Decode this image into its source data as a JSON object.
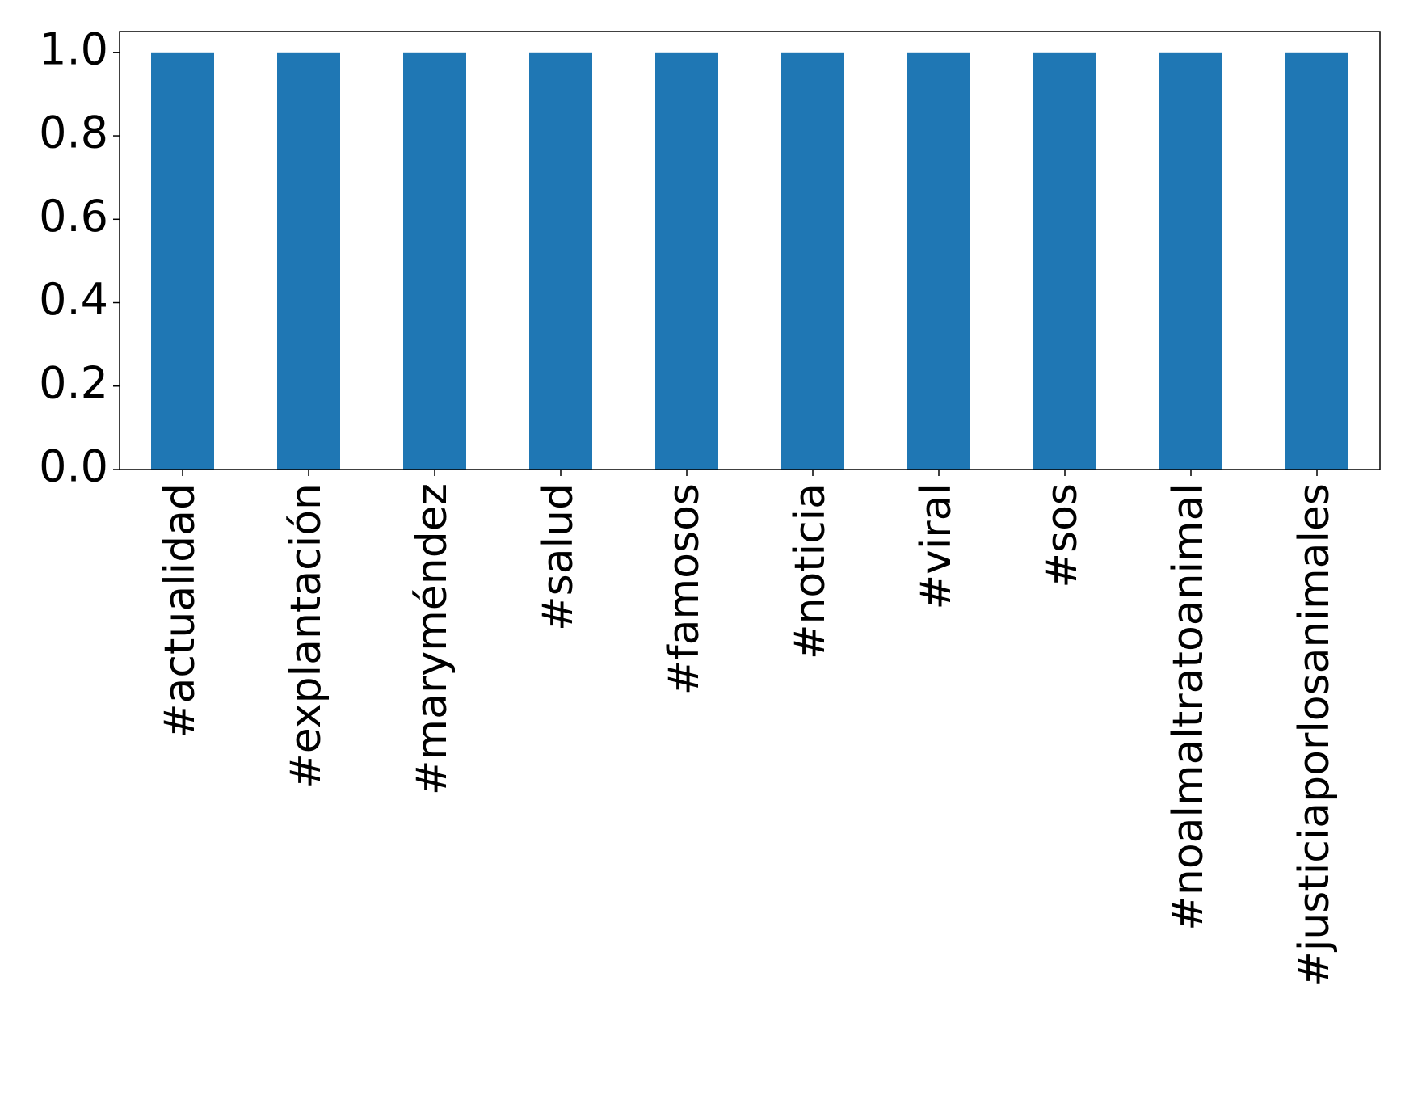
{
  "chart_data": {
    "type": "bar",
    "categories": [
      "#actualidad",
      "#explantación",
      "#maryméndez",
      "#salud",
      "#famosos",
      "#noticia",
      "#viral",
      "#sos",
      "#noalmaltratoanimal",
      "#justiciaporlosanimales"
    ],
    "values": [
      1,
      1,
      1,
      1,
      1,
      1,
      1,
      1,
      1,
      1
    ],
    "color": "#1f77b4",
    "ylim": [
      0,
      1.05
    ],
    "yticks": [
      {
        "value": 0,
        "label": "0.0"
      },
      0.2,
      0.4,
      0.6,
      0.8,
      {
        "value": 1,
        "label": "1.0"
      }
    ],
    "grid": false
  }
}
